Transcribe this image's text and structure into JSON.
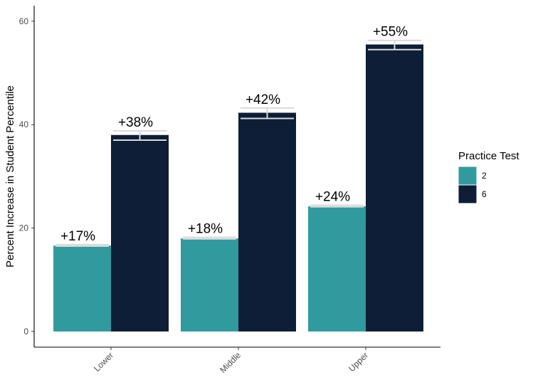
{
  "chart_data": {
    "type": "bar",
    "title": "",
    "xlabel": "",
    "ylabel": "Percent Increase in Student Percentile",
    "categories": [
      "Lower",
      "Middle",
      "Upper"
    ],
    "series": [
      {
        "name": "2",
        "color": "#319a9f",
        "values": [
          16.6,
          18.0,
          24.2
        ],
        "error_low": [
          16.5,
          17.9,
          24.1
        ],
        "error_high": [
          16.8,
          18.2,
          24.4
        ],
        "labels": [
          "+17%",
          "+18%",
          "+24%"
        ]
      },
      {
        "name": "6",
        "color": "#0d1e36",
        "values": [
          38.0,
          42.3,
          55.5
        ],
        "error_low": [
          37.0,
          41.2,
          54.5
        ],
        "error_high": [
          38.8,
          43.2,
          56.3
        ],
        "labels": [
          "+38%",
          "+42%",
          "+55%"
        ]
      }
    ],
    "ylim": [
      0,
      62.6
    ],
    "yticks": [
      0,
      20,
      40,
      60
    ],
    "grid": false,
    "legend": {
      "title": "Practice Test",
      "position": "right"
    },
    "error_bar_color": "#d9d9d9"
  }
}
